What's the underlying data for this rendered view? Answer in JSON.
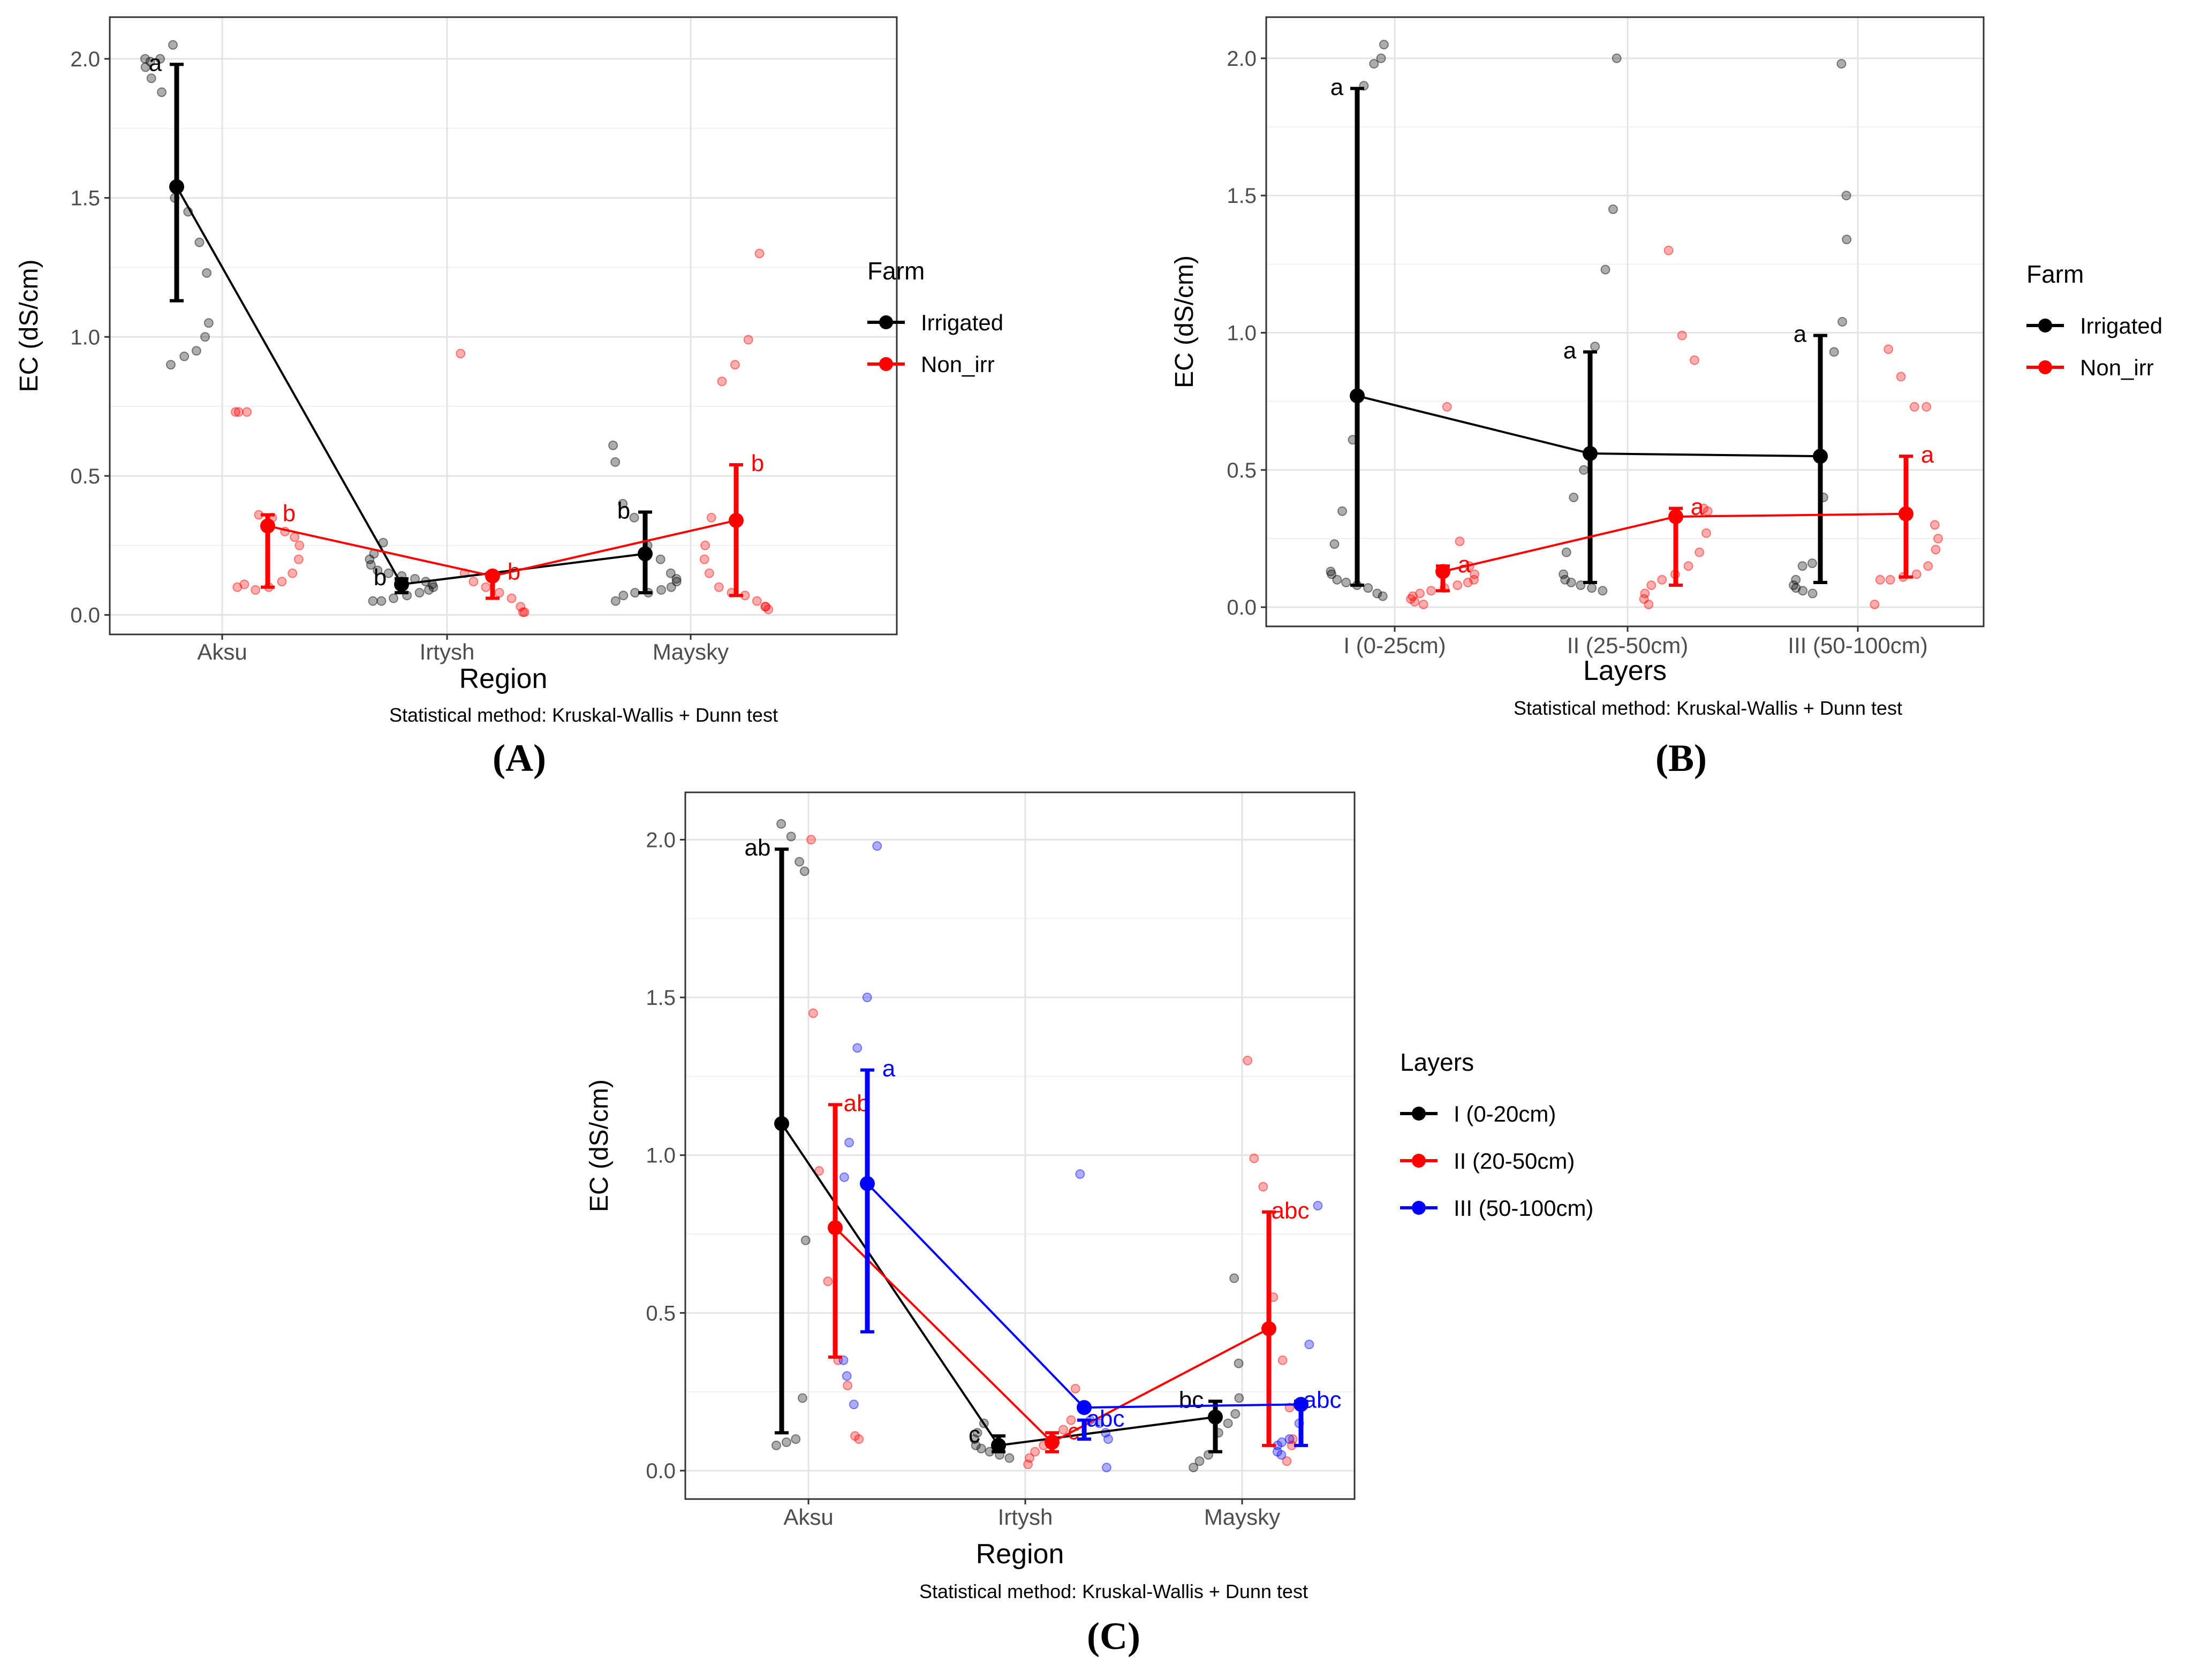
{
  "figure_panels": [
    "(A)",
    "(B)",
    "(C)"
  ],
  "chart_data": [
    {
      "id": "A",
      "type": "line",
      "panel_label": "(A)",
      "title": "",
      "xlabel": "Region",
      "ylabel": "EC (dS/cm)",
      "caption": "Statistical method: Kruskal-Wallis + Dunn test",
      "categories": [
        "Aksu",
        "Irtysh",
        "Maysky"
      ],
      "ylim": [
        -0.07,
        2.15
      ],
      "yticks": [
        0.0,
        0.5,
        1.0,
        1.5,
        2.0
      ],
      "ytick_labels": [
        "0.0",
        "0.5",
        "1.0",
        "1.5",
        "2.0"
      ],
      "grid": true,
      "legend": {
        "title": "Farm",
        "position": "right-top"
      },
      "series": [
        {
          "name": "Irrigated",
          "color": "#000000",
          "means": [
            1.54,
            0.11,
            0.22
          ],
          "lower": [
            1.13,
            0.08,
            0.08
          ],
          "upper": [
            1.98,
            0.13,
            0.37
          ],
          "letters": [
            "a",
            "b",
            "b"
          ],
          "points": [
            [
              2.05,
              2.0,
              1.99,
              2.0,
              1.97,
              1.93,
              1.88,
              1.5,
              1.45,
              1.34,
              1.23,
              1.05,
              1.0,
              0.95,
              0.93,
              0.9
            ],
            [
              0.26,
              0.22,
              0.2,
              0.18,
              0.16,
              0.15,
              0.14,
              0.13,
              0.12,
              0.11,
              0.1,
              0.09,
              0.08,
              0.07,
              0.06,
              0.05,
              0.05
            ],
            [
              0.61,
              0.55,
              0.4,
              0.35,
              0.25,
              0.2,
              0.15,
              0.13,
              0.12,
              0.1,
              0.09,
              0.08,
              0.08,
              0.07,
              0.05
            ]
          ]
        },
        {
          "name": "Non_irr",
          "color": "#ff0000",
          "means": [
            0.32,
            0.14,
            0.34
          ],
          "lower": [
            0.1,
            0.06,
            0.07
          ],
          "upper": [
            0.36,
            0.15,
            0.54
          ],
          "letters": [
            "b",
            "b",
            "b"
          ],
          "points": [
            [
              0.73,
              0.73,
              0.73,
              0.36,
              0.35,
              0.3,
              0.28,
              0.25,
              0.2,
              0.15,
              0.12,
              0.1,
              0.09,
              0.11,
              0.1
            ],
            [
              0.94,
              0.15,
              0.12,
              0.1,
              0.08,
              0.06,
              0.03,
              0.01,
              0.01
            ],
            [
              1.3,
              0.99,
              0.9,
              0.84,
              0.35,
              0.25,
              0.2,
              0.15,
              0.1,
              0.08,
              0.07,
              0.05,
              0.03,
              0.02,
              0.03
            ]
          ]
        }
      ]
    },
    {
      "id": "B",
      "type": "line",
      "panel_label": "(B)",
      "title": "",
      "xlabel": "Layers",
      "ylabel": "EC (dS/cm)",
      "caption": "Statistical method: Kruskal-Wallis + Dunn test",
      "categories": [
        "I (0-25cm)",
        "II (25-50cm)",
        "III (50-100cm)"
      ],
      "ylim": [
        -0.07,
        2.15
      ],
      "yticks": [
        0.0,
        0.5,
        1.0,
        1.5,
        2.0
      ],
      "ytick_labels": [
        "0.0",
        "0.5",
        "1.0",
        "1.5",
        "2.0"
      ],
      "grid": true,
      "legend": {
        "title": "Farm",
        "position": "right-top"
      },
      "series": [
        {
          "name": "Irrigated",
          "color": "#000000",
          "means": [
            0.77,
            0.56,
            0.55
          ],
          "lower": [
            0.08,
            0.09,
            0.09
          ],
          "upper": [
            1.89,
            0.93,
            0.99
          ],
          "letters": [
            "a",
            "a",
            "a"
          ],
          "points": [
            [
              2.05,
              2.0,
              1.98,
              1.9,
              0.61,
              0.35,
              0.23,
              0.13,
              0.12,
              0.1,
              0.09,
              0.08,
              0.07,
              0.05,
              0.04
            ],
            [
              2.0,
              1.45,
              1.23,
              0.95,
              0.5,
              0.4,
              0.2,
              0.12,
              0.1,
              0.09,
              0.08,
              0.07,
              0.06
            ],
            [
              1.98,
              1.5,
              1.34,
              1.04,
              0.93,
              0.4,
              0.16,
              0.15,
              0.1,
              0.08,
              0.07,
              0.06,
              0.05
            ]
          ]
        },
        {
          "name": "Non_irr",
          "color": "#ff0000",
          "means": [
            0.13,
            0.33,
            0.34
          ],
          "lower": [
            0.06,
            0.08,
            0.11
          ],
          "upper": [
            0.15,
            0.36,
            0.55
          ],
          "letters": [
            "a",
            "a",
            "a"
          ],
          "points": [
            [
              0.73,
              0.24,
              0.15,
              0.12,
              0.1,
              0.09,
              0.08,
              0.07,
              0.06,
              0.05,
              0.04,
              0.03,
              0.02,
              0.01
            ],
            [
              1.3,
              0.99,
              0.9,
              0.36,
              0.35,
              0.27,
              0.2,
              0.15,
              0.12,
              0.1,
              0.08,
              0.05,
              0.03,
              0.01
            ],
            [
              0.94,
              0.84,
              0.73,
              0.73,
              0.3,
              0.25,
              0.21,
              0.15,
              0.12,
              0.11,
              0.1,
              0.1,
              0.01
            ]
          ]
        }
      ]
    },
    {
      "id": "C",
      "type": "line",
      "panel_label": "(C)",
      "title": "",
      "xlabel": "Region",
      "ylabel": "EC (dS/cm)",
      "caption": "Statistical method: Kruskal-Wallis + Dunn test",
      "categories": [
        "Aksu",
        "Irtysh",
        "Maysky"
      ],
      "ylim": [
        -0.09,
        2.15
      ],
      "yticks": [
        0.0,
        0.5,
        1.0,
        1.5,
        2.0
      ],
      "ytick_labels": [
        "0.0",
        "0.5",
        "1.0",
        "1.5",
        "2.0"
      ],
      "grid": true,
      "legend": {
        "title": "Layers",
        "position": "right-middle"
      },
      "series": [
        {
          "name": "I (0-20cm)",
          "color": "#000000",
          "means": [
            1.1,
            0.08,
            0.17
          ],
          "lower": [
            0.12,
            0.06,
            0.06
          ],
          "upper": [
            1.97,
            0.11,
            0.22
          ],
          "letters": [
            "ab",
            "c",
            "bc"
          ],
          "points": [
            [
              2.05,
              2.01,
              1.93,
              1.9,
              0.73,
              0.23,
              0.1,
              0.09,
              0.08
            ],
            [
              0.15,
              0.12,
              0.1,
              0.08,
              0.07,
              0.06,
              0.05,
              0.04
            ],
            [
              0.61,
              0.34,
              0.23,
              0.18,
              0.15,
              0.12,
              0.05,
              0.03,
              0.01
            ]
          ]
        },
        {
          "name": "II (20-50cm)",
          "color": "#ff0000",
          "means": [
            0.77,
            0.09,
            0.45
          ],
          "lower": [
            0.36,
            0.06,
            0.08
          ],
          "upper": [
            1.16,
            0.12,
            0.82
          ],
          "letters": [
            "ab",
            "c",
            "abc"
          ],
          "points": [
            [
              2.0,
              1.45,
              0.95,
              0.6,
              0.35,
              0.27,
              0.11,
              0.1
            ],
            [
              0.26,
              0.16,
              0.13,
              0.1,
              0.08,
              0.06,
              0.04,
              0.02
            ],
            [
              1.3,
              0.99,
              0.9,
              0.55,
              0.35,
              0.2,
              0.1,
              0.08,
              0.03
            ]
          ]
        },
        {
          "name": "III (50-100cm)",
          "color": "#0000ff",
          "means": [
            0.91,
            0.2,
            0.21
          ],
          "lower": [
            0.44,
            0.1,
            0.08
          ],
          "upper": [
            1.27,
            0.16,
            0.22
          ],
          "letters": [
            "a",
            "abc",
            "abc"
          ],
          "points": [
            [
              1.98,
              1.5,
              1.34,
              1.04,
              0.93,
              0.35,
              0.3,
              0.21
            ],
            [
              0.94,
              0.16,
              0.15,
              0.12,
              0.1,
              0.01
            ],
            [
              0.84,
              0.4,
              0.15,
              0.1,
              0.09,
              0.08,
              0.06,
              0.05
            ]
          ]
        }
      ]
    }
  ]
}
